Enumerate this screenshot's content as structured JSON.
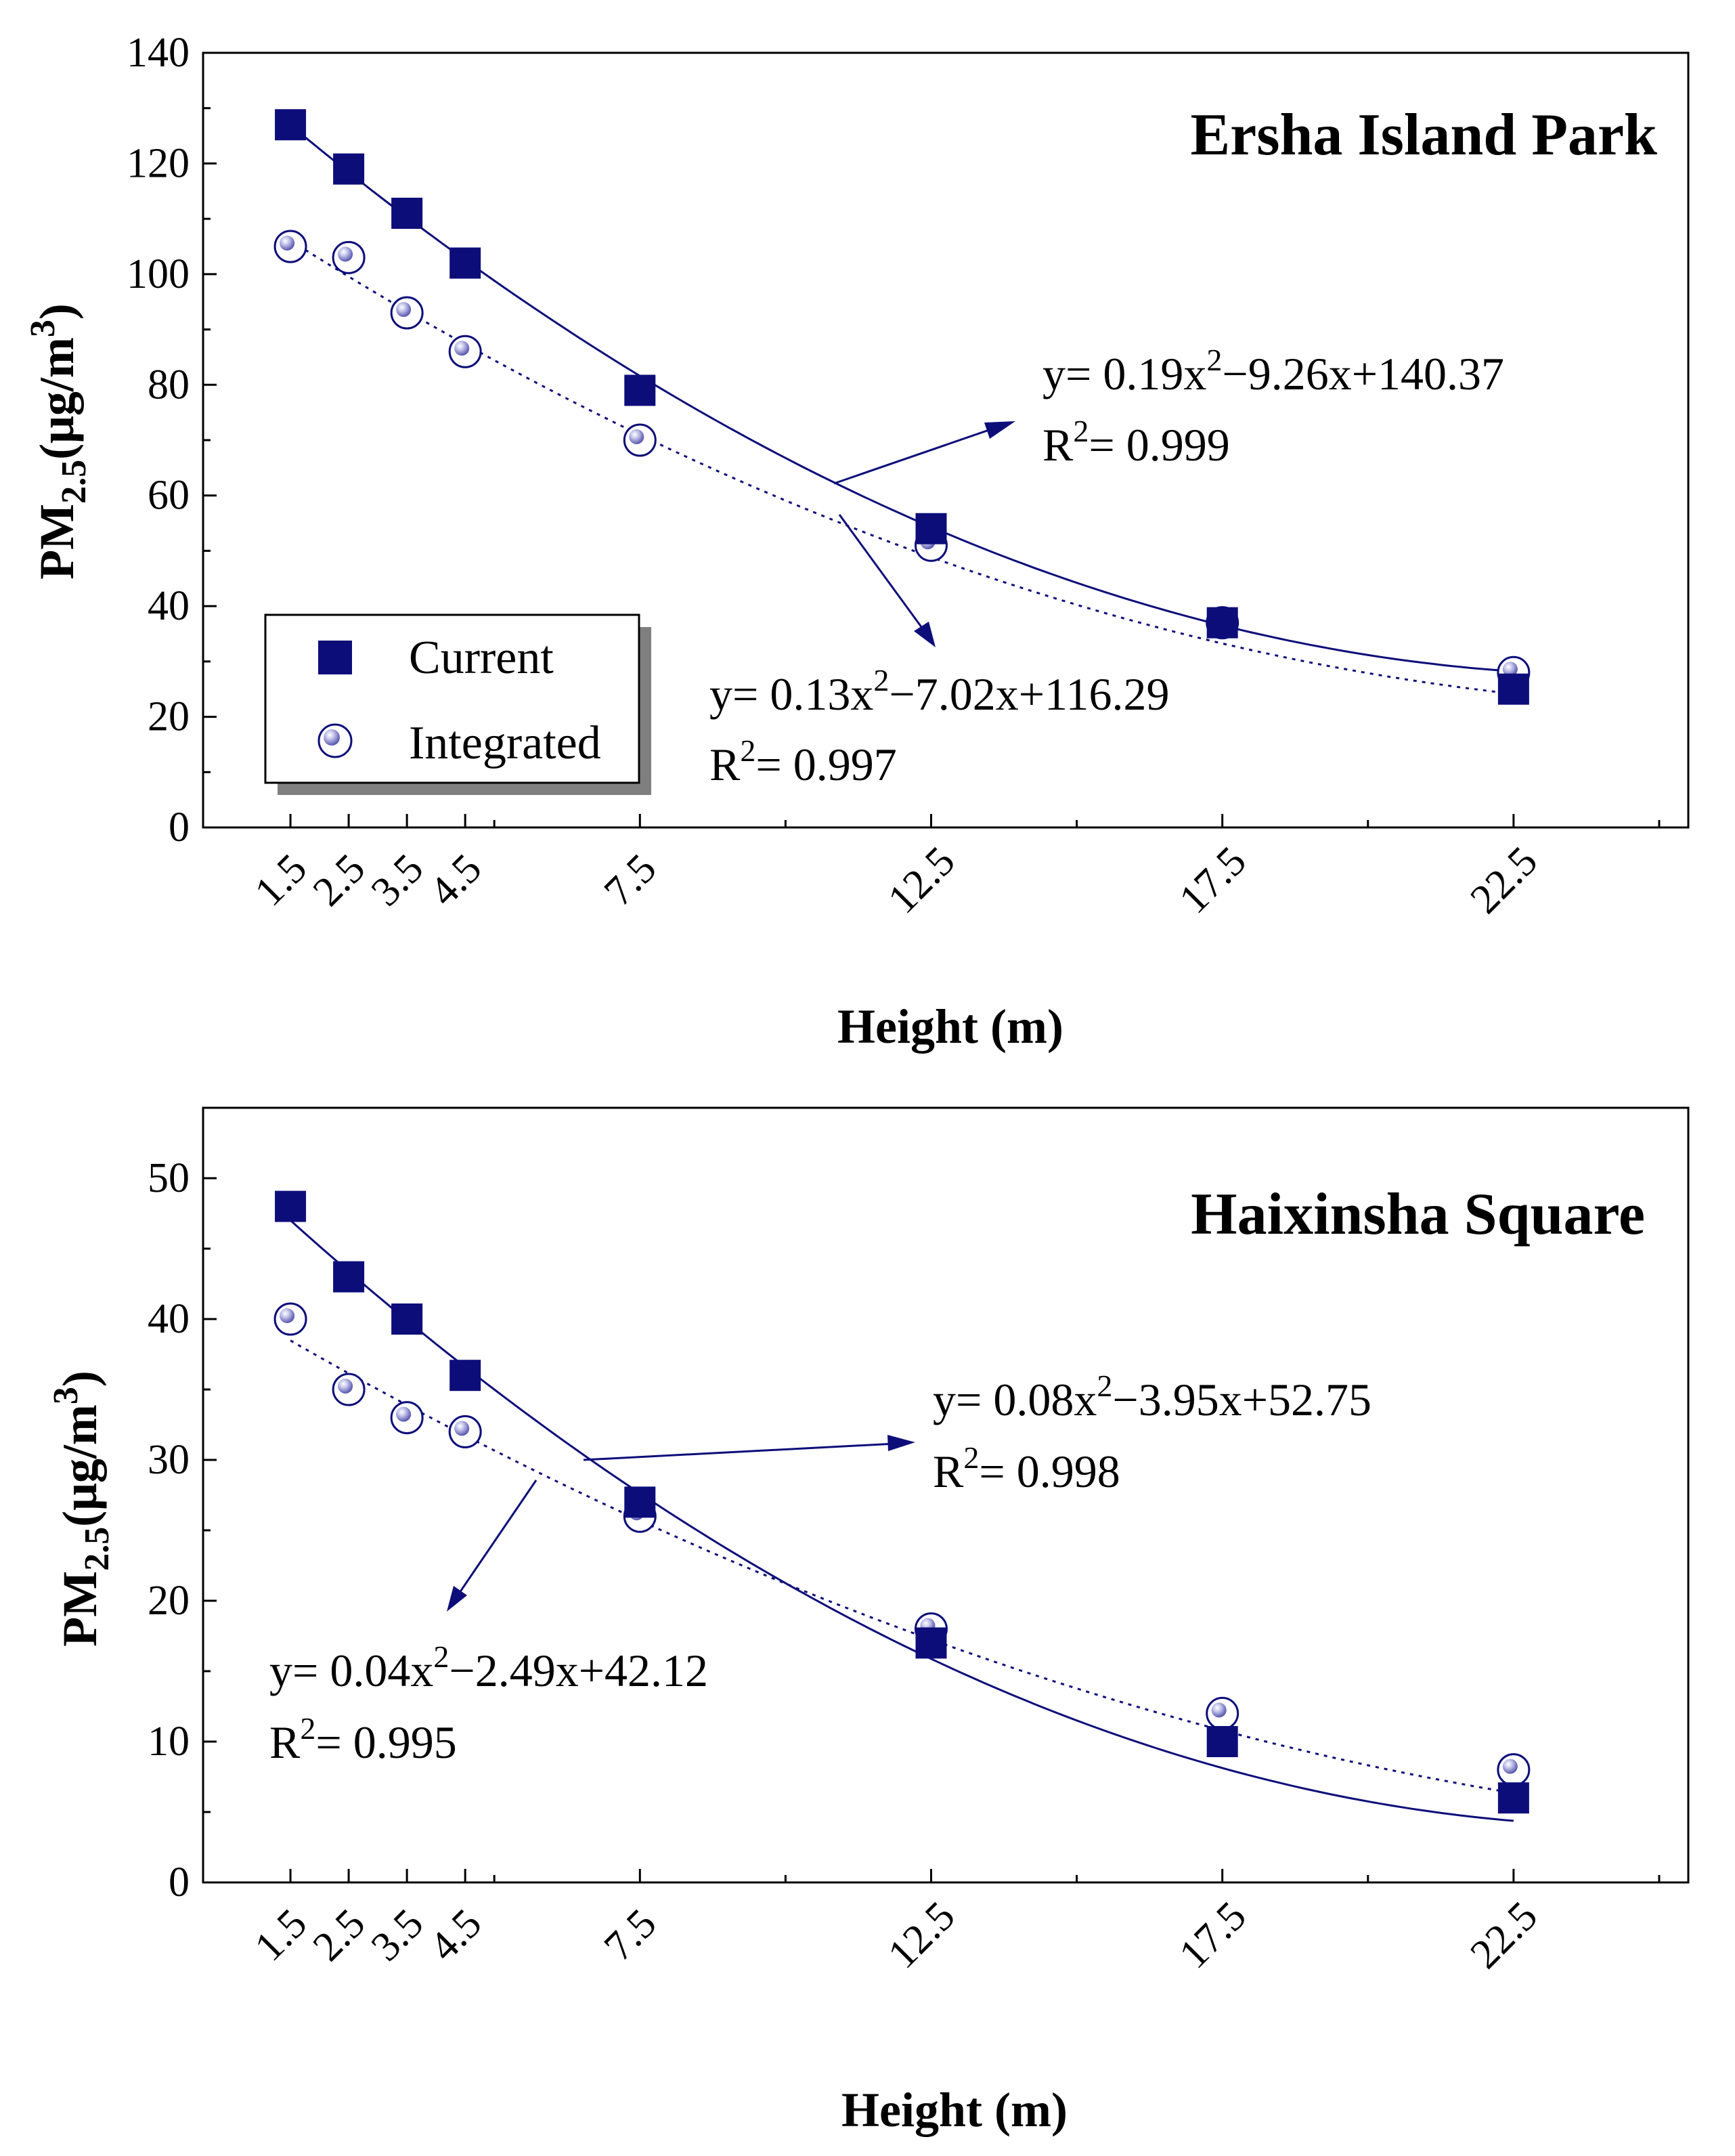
{
  "chart_data": [
    {
      "type": "scatter",
      "title": "Ersha Island Park",
      "xlabel": "Height (m)",
      "ylabel": "PM2.5(μg/m3)",
      "ylabel_parts": {
        "main": "PM",
        "sub": "2.5",
        "unit_open": "(μg/m",
        "sup": "3",
        "unit_close": ")"
      },
      "xlim": [
        0,
        25.5
      ],
      "ylim": [
        0,
        140
      ],
      "x_ticks": [
        "1.5",
        "2.5",
        "3.5",
        "4.5",
        "7.5",
        "12.5",
        "17.5",
        "22.5"
      ],
      "y_ticks": [
        "0",
        "20",
        "40",
        "60",
        "80",
        "100",
        "120",
        "140"
      ],
      "legend": {
        "position": "bottom-left",
        "entries": [
          "Current",
          "Integrated"
        ]
      },
      "series": [
        {
          "name": "Current",
          "marker": "square",
          "color": "#0d0d7a",
          "x": [
            1.5,
            2.5,
            3.5,
            4.5,
            7.5,
            12.5,
            17.5,
            22.5
          ],
          "values": [
            127,
            119,
            111,
            102,
            79,
            54,
            37,
            25
          ],
          "fit": {
            "coef": [
              0.19,
              -9.26,
              140.37
            ],
            "style": "solid",
            "equation": {
              "lead": "y= 0.19x",
              "sup": "2",
              "rest": "−9.26x+140.37"
            },
            "r2": {
              "lead": "R",
              "sup": "2",
              "rest": "= 0.999"
            }
          }
        },
        {
          "name": "Integrated",
          "marker": "circle",
          "color": "#0d0d7a",
          "x": [
            1.5,
            2.5,
            3.5,
            4.5,
            7.5,
            12.5,
            17.5,
            22.5
          ],
          "values": [
            105,
            103,
            93,
            86,
            70,
            51,
            37,
            28
          ],
          "fit": {
            "coef": [
              0.13,
              -7.02,
              116.29
            ],
            "style": "dotted",
            "equation": {
              "lead": "y= 0.13x",
              "sup": "2",
              "rest": "−7.02x+116.29"
            },
            "r2": {
              "lead": "R",
              "sup": "2",
              "rest": "= 0.997"
            }
          }
        }
      ]
    },
    {
      "type": "scatter",
      "title": "Haixinsha Square",
      "xlabel": "Height (m)",
      "ylabel": "PM2.5(μg/m3)",
      "ylabel_parts": {
        "main": "PM",
        "sub": "2.5",
        "unit_open": "(μg/m",
        "sup": "3",
        "unit_close": ")"
      },
      "xlim": [
        0,
        25.5
      ],
      "ylim": [
        0,
        55
      ],
      "x_ticks": [
        "1.5",
        "2.5",
        "3.5",
        "4.5",
        "7.5",
        "12.5",
        "17.5",
        "22.5"
      ],
      "y_ticks": [
        "0",
        "10",
        "20",
        "30",
        "40",
        "50"
      ],
      "series": [
        {
          "name": "Current",
          "marker": "square",
          "color": "#0d0d7a",
          "x": [
            1.5,
            2.5,
            3.5,
            4.5,
            7.5,
            12.5,
            17.5,
            22.5
          ],
          "values": [
            48,
            43,
            40,
            36,
            27,
            17,
            10,
            6
          ],
          "fit": {
            "coef": [
              0.08,
              -3.95,
              52.75
            ],
            "style": "solid",
            "equation": {
              "lead": "y= 0.08x",
              "sup": "2",
              "rest": "−3.95x+52.75"
            },
            "r2": {
              "lead": "R",
              "sup": "2",
              "rest": "= 0.998"
            }
          }
        },
        {
          "name": "Integrated",
          "marker": "circle",
          "color": "#0d0d7a",
          "x": [
            1.5,
            2.5,
            3.5,
            4.5,
            7.5,
            12.5,
            17.5,
            22.5
          ],
          "values": [
            40,
            35,
            33,
            32,
            26,
            18,
            12,
            8
          ],
          "fit": {
            "coef": [
              0.04,
              -2.49,
              42.12
            ],
            "style": "dotted",
            "equation": {
              "lead": "y= 0.04x",
              "sup": "2",
              "rest": "−2.49x+42.12"
            },
            "r2": {
              "lead": "R",
              "sup": "2",
              "rest": "= 0.995"
            }
          }
        }
      ]
    }
  ]
}
